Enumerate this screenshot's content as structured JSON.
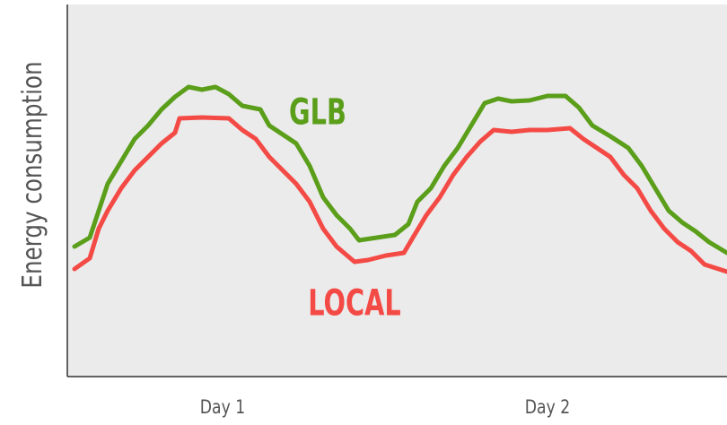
{
  "chart_data": {
    "type": "line",
    "ylabel": "Energy consumption",
    "xlim": [
      0,
      735
    ],
    "ylim": [
      0,
      415
    ],
    "xticks": [
      {
        "value": 173,
        "label": "Day 1"
      },
      {
        "value": 535,
        "label": "Day 2"
      }
    ],
    "series": [
      {
        "name": "GLB",
        "color": "#5a9e1a",
        "x": [
          8,
          25,
          35,
          45,
          60,
          75,
          90,
          105,
          120,
          135,
          150,
          165,
          180,
          195,
          215,
          225,
          240,
          255,
          270,
          285,
          300,
          315,
          325,
          345,
          365,
          380,
          390,
          405,
          420,
          435,
          450,
          465,
          480,
          495,
          515,
          535,
          555,
          570,
          585,
          605,
          625,
          640,
          655,
          670,
          685,
          700,
          715,
          735
        ],
        "values": [
          145,
          155,
          185,
          215,
          240,
          265,
          280,
          298,
          312,
          323,
          320,
          323,
          315,
          302,
          298,
          280,
          270,
          260,
          235,
          200,
          180,
          165,
          152,
          155,
          158,
          170,
          195,
          210,
          235,
          255,
          280,
          305,
          310,
          307,
          308,
          313,
          313,
          300,
          280,
          268,
          255,
          235,
          210,
          185,
          172,
          162,
          150,
          138
        ]
      },
      {
        "name": "LOCAL",
        "color": "#f44a45",
        "x": [
          8,
          25,
          35,
          45,
          60,
          75,
          90,
          105,
          120,
          125,
          150,
          180,
          195,
          210,
          225,
          240,
          255,
          270,
          285,
          300,
          320,
          335,
          355,
          375,
          385,
          400,
          415,
          430,
          445,
          460,
          475,
          495,
          515,
          535,
          560,
          575,
          590,
          605,
          620,
          635,
          650,
          665,
          680,
          695,
          710,
          735
        ],
        "values": [
          120,
          132,
          165,
          185,
          210,
          230,
          245,
          260,
          272,
          288,
          289,
          288,
          275,
          265,
          245,
          230,
          215,
          195,
          165,
          145,
          128,
          130,
          135,
          138,
          155,
          180,
          200,
          225,
          245,
          262,
          275,
          273,
          275,
          275,
          277,
          265,
          255,
          245,
          225,
          210,
          185,
          165,
          150,
          140,
          125,
          117
        ]
      }
    ]
  }
}
